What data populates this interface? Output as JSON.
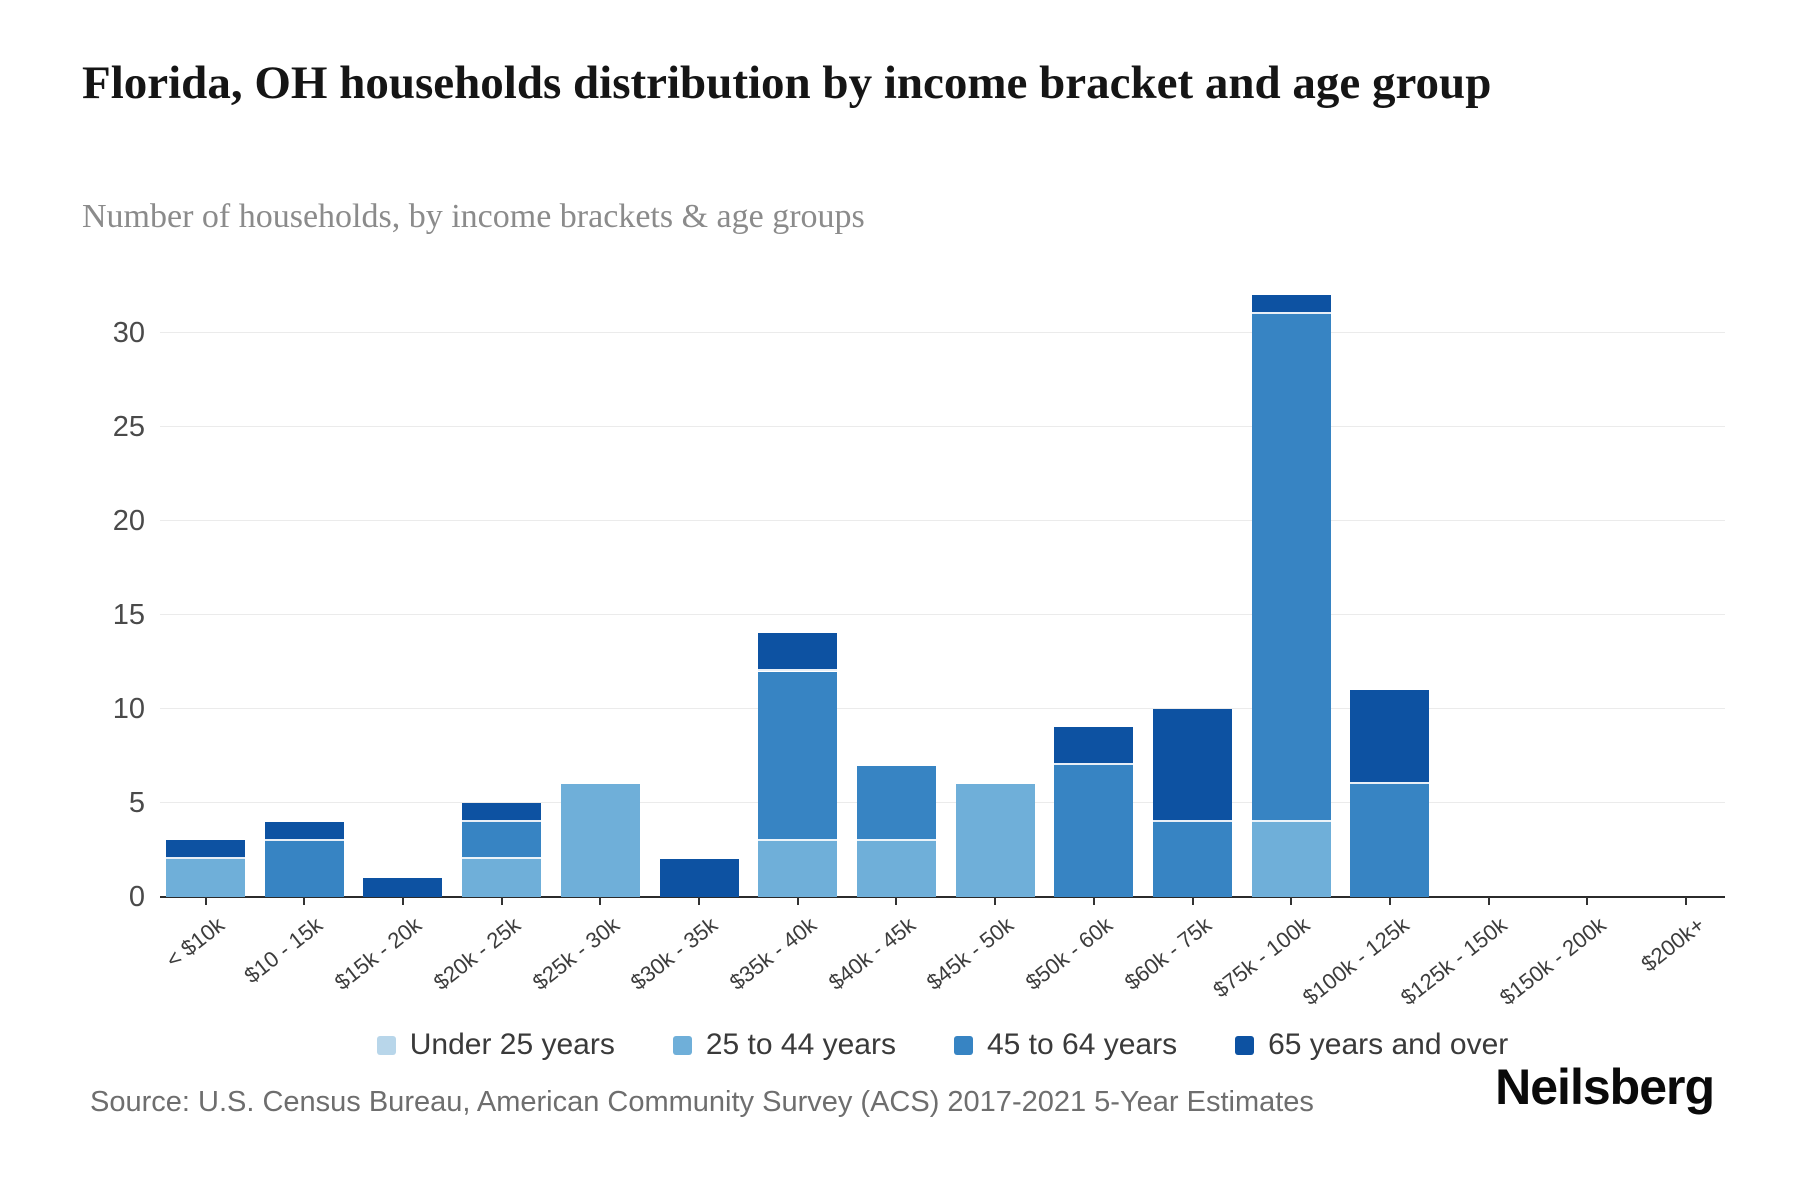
{
  "header": {
    "title": "Florida, OH households distribution by income bracket and age group",
    "subtitle": "Number of households, by income brackets & age groups"
  },
  "chart_data": {
    "type": "bar",
    "stacked": true,
    "title": "Florida, OH households distribution by income bracket and age group",
    "subtitle": "Number of households, by income brackets & age groups",
    "xlabel": "",
    "ylabel": "",
    "grid": "horizontal",
    "legend_position": "bottom",
    "yticks": [
      0,
      5,
      10,
      15,
      20,
      25,
      30
    ],
    "ylim": [
      0,
      32.8
    ],
    "categories": [
      "< $10k",
      "$10 - 15k",
      "$15k - 20k",
      "$20k - 25k",
      "$25k - 30k",
      "$30k - 35k",
      "$35k - 40k",
      "$40k - 45k",
      "$45k - 50k",
      "$50k - 60k",
      "$60k - 75k",
      "$75k - 100k",
      "$100k - 125k",
      "$125k - 150k",
      "$150k - 200k",
      "$200k+"
    ],
    "series": [
      {
        "name": "Under 25 years",
        "color": "#b8d6ea",
        "values": [
          0,
          0,
          0,
          0,
          0,
          0,
          0,
          0,
          0,
          0,
          0,
          0,
          0,
          0,
          0,
          0
        ]
      },
      {
        "name": "25 to 44 years",
        "color": "#6fafd9",
        "values": [
          2,
          0,
          0,
          2,
          6,
          0,
          3,
          3,
          6,
          0,
          0,
          4,
          0,
          0,
          0,
          0
        ]
      },
      {
        "name": "45 to 64 years",
        "color": "#3784c3",
        "values": [
          0,
          3,
          0,
          2,
          0,
          0,
          9,
          4,
          0,
          7,
          4,
          27,
          6,
          0,
          0,
          0
        ]
      },
      {
        "name": "65 years and over",
        "color": "#0d52a2",
        "values": [
          1,
          1,
          1,
          1,
          0,
          2,
          2,
          0,
          0,
          2,
          6,
          1,
          5,
          0,
          0,
          0
        ]
      }
    ],
    "totals": [
      3,
      4,
      1,
      5,
      6,
      2,
      14,
      7,
      6,
      9,
      10,
      32,
      11,
      0,
      0,
      0
    ]
  },
  "footer": {
    "source": "Source: U.S. Census Bureau, American Community Survey (ACS) 2017-2021 5-Year Estimates",
    "brand": "Neilsberg"
  }
}
